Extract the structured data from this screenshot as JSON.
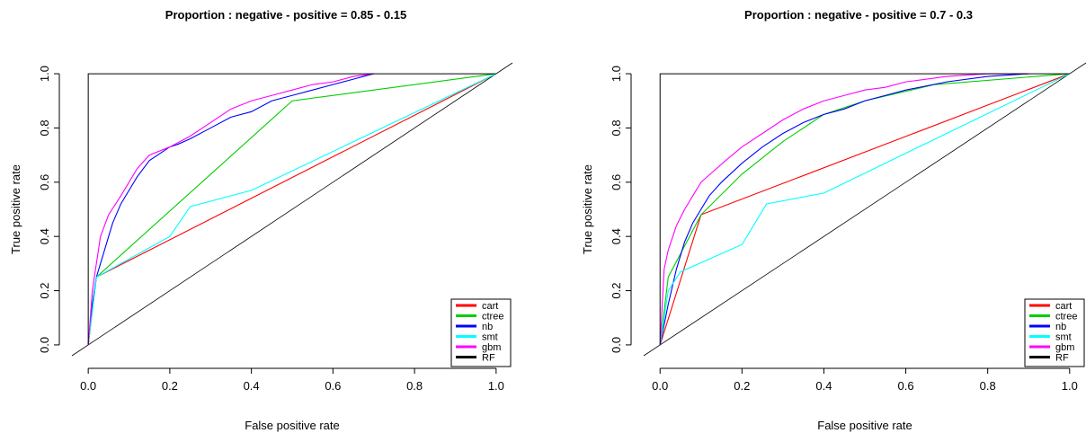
{
  "chart_data": [
    {
      "type": "line",
      "title": "Proportion : negative - positive =  0.85 - 0.15",
      "xlabel": "False positive rate",
      "ylabel": "True positive rate",
      "xlim": [
        0,
        1
      ],
      "ylim": [
        0,
        1
      ],
      "xticks": [
        "0.0",
        "0.2",
        "0.4",
        "0.6",
        "0.8",
        "1.0"
      ],
      "yticks": [
        "0.0",
        "0.2",
        "0.4",
        "0.6",
        "0.8",
        "1.0"
      ],
      "grid": false,
      "legend_position": "bottom-right",
      "diagonal": true,
      "series": [
        {
          "name": "cart",
          "color": "#ff0000",
          "x": [
            0,
            0.02,
            1
          ],
          "y": [
            0,
            0.25,
            1
          ]
        },
        {
          "name": "ctree",
          "color": "#00cd00",
          "x": [
            0,
            0.02,
            0.5,
            1
          ],
          "y": [
            0,
            0.25,
            0.9,
            1
          ]
        },
        {
          "name": "nb",
          "color": "#0000ff",
          "x": [
            0,
            0.01,
            0.02,
            0.04,
            0.06,
            0.08,
            0.1,
            0.12,
            0.15,
            0.2,
            0.22,
            0.25,
            0.3,
            0.35,
            0.4,
            0.45,
            0.5,
            0.55,
            0.6,
            0.65,
            0.7
          ],
          "y": [
            0,
            0.15,
            0.25,
            0.35,
            0.45,
            0.52,
            0.57,
            0.62,
            0.68,
            0.73,
            0.74,
            0.76,
            0.8,
            0.84,
            0.86,
            0.9,
            0.92,
            0.94,
            0.96,
            0.98,
            1.0
          ]
        },
        {
          "name": "smt",
          "color": "#00ffff",
          "x": [
            0,
            0.02,
            0.2,
            0.25,
            0.4,
            1
          ],
          "y": [
            0,
            0.25,
            0.4,
            0.51,
            0.57,
            1
          ]
        },
        {
          "name": "gbm",
          "color": "#ff00ff",
          "x": [
            0,
            0.01,
            0.02,
            0.03,
            0.05,
            0.08,
            0.1,
            0.12,
            0.15,
            0.2,
            0.25,
            0.3,
            0.35,
            0.4,
            0.45,
            0.5,
            0.55,
            0.6,
            0.65,
            0.7
          ],
          "y": [
            0,
            0.2,
            0.3,
            0.4,
            0.48,
            0.55,
            0.6,
            0.65,
            0.7,
            0.73,
            0.77,
            0.82,
            0.87,
            0.9,
            0.92,
            0.94,
            0.96,
            0.97,
            0.99,
            1.0
          ]
        },
        {
          "name": "RF",
          "color": "#000000",
          "x": [
            0,
            0,
            1
          ],
          "y": [
            0,
            1,
            1
          ]
        }
      ]
    },
    {
      "type": "line",
      "title": "Proportion : negative - positive =  0.7 - 0.3",
      "xlabel": "False positive rate",
      "ylabel": "True positive rate",
      "xlim": [
        0,
        1
      ],
      "ylim": [
        0,
        1
      ],
      "xticks": [
        "0.0",
        "0.2",
        "0.4",
        "0.6",
        "0.8",
        "1.0"
      ],
      "yticks": [
        "0.0",
        "0.2",
        "0.4",
        "0.6",
        "0.8",
        "1.0"
      ],
      "grid": false,
      "legend_position": "bottom-right",
      "diagonal": true,
      "series": [
        {
          "name": "cart",
          "color": "#ff0000",
          "x": [
            0,
            0.1,
            1
          ],
          "y": [
            0,
            0.48,
            1
          ]
        },
        {
          "name": "ctree",
          "color": "#00cd00",
          "x": [
            0,
            0.02,
            0.1,
            0.2,
            0.3,
            0.4,
            0.5,
            0.67,
            1
          ],
          "y": [
            0,
            0.25,
            0.48,
            0.63,
            0.75,
            0.85,
            0.9,
            0.96,
            1
          ]
        },
        {
          "name": "nb",
          "color": "#0000ff",
          "x": [
            0,
            0.02,
            0.04,
            0.06,
            0.08,
            0.1,
            0.12,
            0.15,
            0.2,
            0.25,
            0.3,
            0.35,
            0.4,
            0.45,
            0.5,
            0.55,
            0.6,
            0.7,
            0.8,
            0.9
          ],
          "y": [
            0,
            0.15,
            0.28,
            0.38,
            0.45,
            0.5,
            0.55,
            0.6,
            0.67,
            0.73,
            0.78,
            0.82,
            0.85,
            0.87,
            0.9,
            0.92,
            0.94,
            0.97,
            0.99,
            1.0
          ]
        },
        {
          "name": "smt",
          "color": "#00ffff",
          "x": [
            0,
            0.02,
            0.05,
            0.2,
            0.26,
            0.4,
            1
          ],
          "y": [
            0,
            0.2,
            0.27,
            0.37,
            0.52,
            0.56,
            1
          ]
        },
        {
          "name": "gbm",
          "color": "#ff00ff",
          "x": [
            0,
            0.01,
            0.02,
            0.04,
            0.06,
            0.08,
            0.1,
            0.13,
            0.16,
            0.2,
            0.25,
            0.3,
            0.35,
            0.4,
            0.45,
            0.5,
            0.55,
            0.6,
            0.7,
            0.8,
            0.9
          ],
          "y": [
            0,
            0.28,
            0.35,
            0.44,
            0.5,
            0.55,
            0.6,
            0.64,
            0.68,
            0.73,
            0.78,
            0.83,
            0.87,
            0.9,
            0.92,
            0.94,
            0.95,
            0.97,
            0.99,
            1.0,
            1.0
          ]
        },
        {
          "name": "RF",
          "color": "#000000",
          "x": [
            0,
            0,
            1
          ],
          "y": [
            0,
            1,
            1
          ]
        }
      ]
    }
  ]
}
